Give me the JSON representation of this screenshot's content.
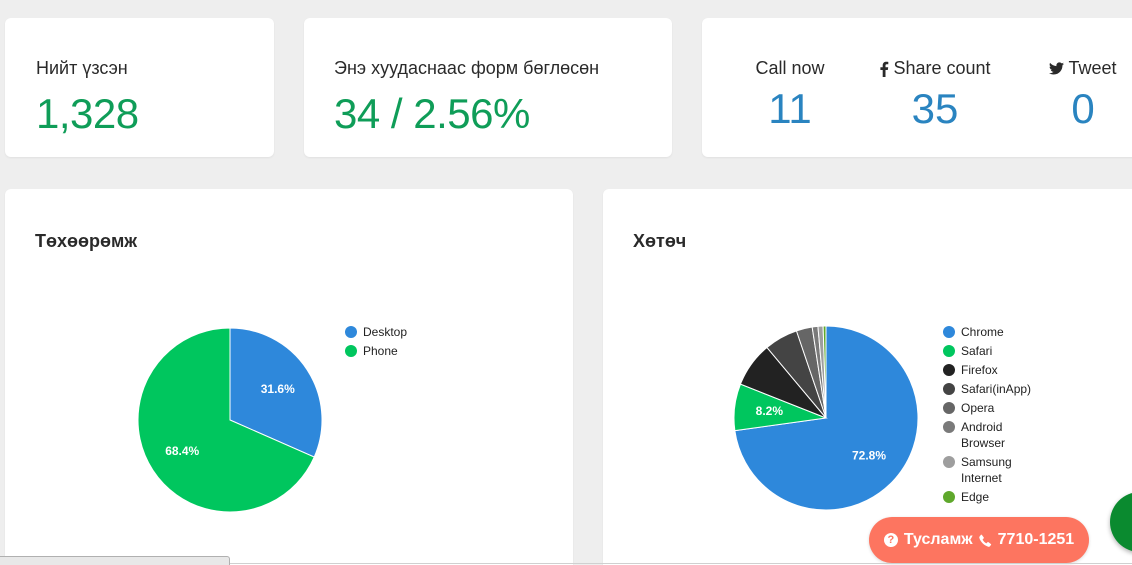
{
  "stats": {
    "total_views": {
      "label": "Нийт үзсэн",
      "value": "1,328"
    },
    "form_fills": {
      "label": "Энэ хуудаснаас форм бөглөсөн",
      "value": "34 / 2.56%"
    },
    "social": [
      {
        "label": "Call now",
        "icon": "none",
        "value": "11"
      },
      {
        "label": "Share count",
        "icon": "facebook-icon",
        "value": "35"
      },
      {
        "label": "Tweet",
        "icon": "twitter-icon",
        "value": "0"
      }
    ]
  },
  "colors": {
    "green_value": "#0f9d58",
    "blue_value": "#2a84c0",
    "help_button": "#fd7560",
    "chat_button": "#0a8a2f"
  },
  "help": {
    "label": "Тусламж",
    "phone": "7710-1251"
  },
  "chart_data": [
    {
      "type": "pie",
      "title": "Төхөөрөмж",
      "categories": [
        "Desktop",
        "Phone"
      ],
      "values": [
        31.6,
        68.4
      ],
      "colors": [
        "#2e88db",
        "#00c65e"
      ],
      "data_labels": [
        "31.6%",
        "68.4%"
      ],
      "legend_position": "right"
    },
    {
      "type": "pie",
      "title": "Хөтөч",
      "categories": [
        "Chrome",
        "Safari",
        "Firefox",
        "Safari(inApp)",
        "Opera",
        "Android Browser",
        "Samsung Internet",
        "Edge"
      ],
      "values": [
        72.8,
        8.2,
        7.9,
        5.9,
        2.8,
        1.0,
        0.9,
        0.5
      ],
      "colors": [
        "#2e88db",
        "#00c65e",
        "#222222",
        "#444444",
        "#666666",
        "#7a7a7a",
        "#9e9e9e",
        "#5fa82c"
      ],
      "data_labels": [
        "72.8%",
        "8.2%",
        "",
        "",
        "",
        "",
        "",
        ""
      ],
      "legend_position": "right"
    }
  ]
}
